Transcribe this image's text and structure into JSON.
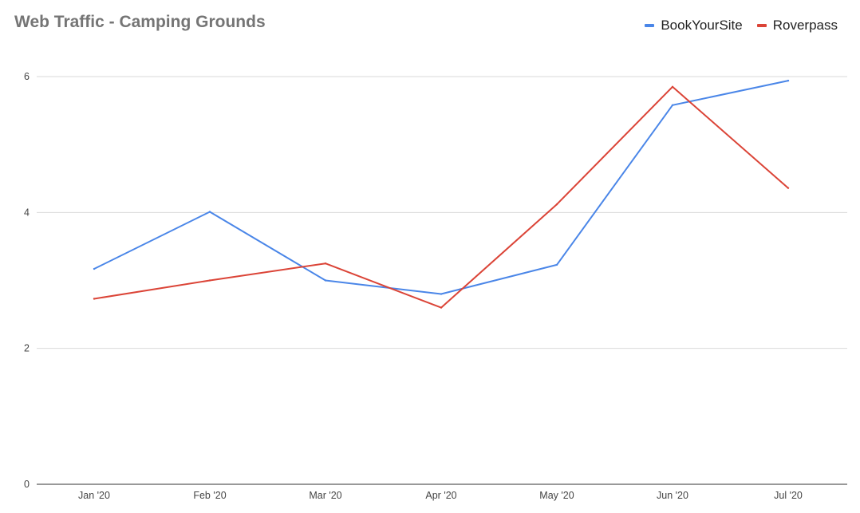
{
  "chart_data": {
    "type": "line",
    "title": "Web Traffic - Camping Grounds",
    "xlabel": "",
    "ylabel": "",
    "categories": [
      "Jan '20",
      "Feb '20",
      "Mar '20",
      "Apr '20",
      "May '20",
      "Jun '20",
      "Jul '20"
    ],
    "series": [
      {
        "name": "BookYourSite",
        "color": "#4a86e8",
        "values": [
          3.17,
          4.01,
          3.0,
          2.8,
          3.23,
          5.58,
          5.94
        ]
      },
      {
        "name": "Roverpass",
        "color": "#db4437",
        "values": [
          2.73,
          3.0,
          3.25,
          2.6,
          4.12,
          5.85,
          4.36
        ]
      }
    ],
    "ylim": [
      0,
      6
    ],
    "yticks": [
      0,
      2,
      4,
      6
    ],
    "grid": true,
    "legend_position": "top-right"
  }
}
